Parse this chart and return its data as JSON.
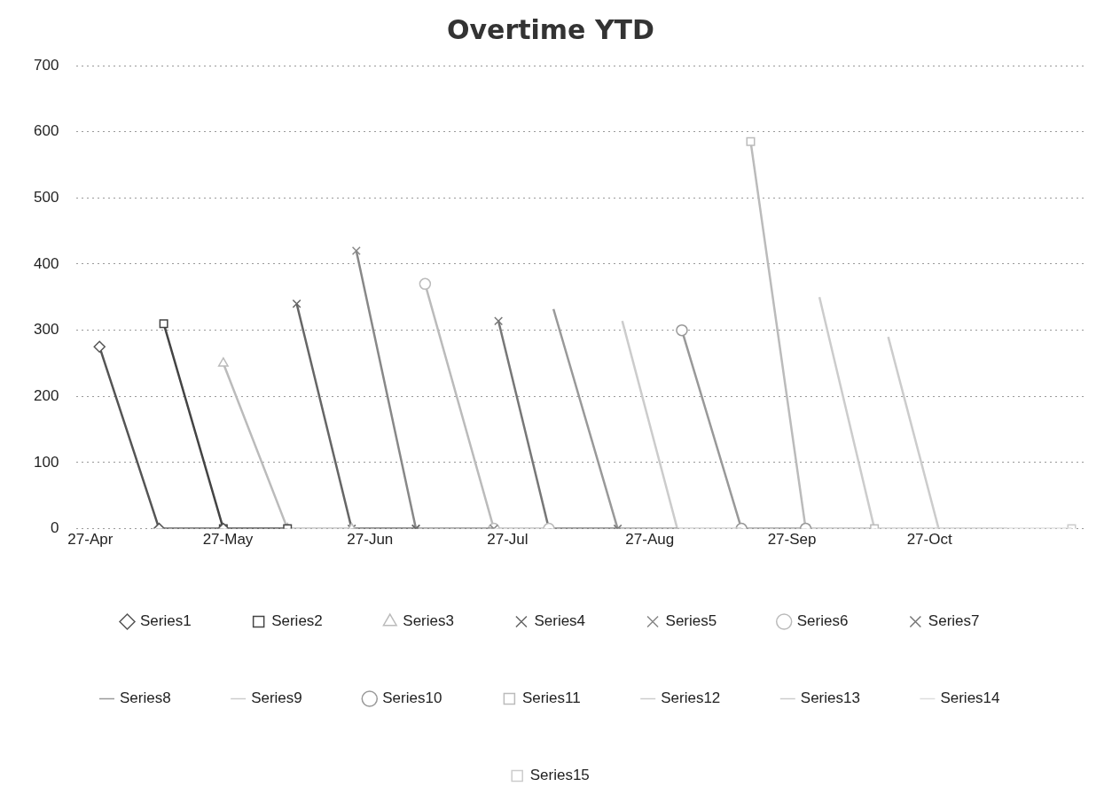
{
  "chart_data": {
    "type": "line",
    "title": "Overtime YTD",
    "xlim": [
      "--04-24",
      "--11-30"
    ],
    "xticks": [
      {
        "value": "--04-27",
        "label": "27-Apr"
      },
      {
        "value": "--05-27",
        "label": "27-May"
      },
      {
        "value": "--06-27",
        "label": "27-Jun"
      },
      {
        "value": "--07-27",
        "label": "27-Jul"
      },
      {
        "value": "--08-27",
        "label": "27-Aug"
      },
      {
        "value": "--09-27",
        "label": "27-Sep"
      },
      {
        "value": "--10-27",
        "label": "27-Oct"
      }
    ],
    "ylim": [
      0,
      700
    ],
    "yticks": [
      0,
      100,
      200,
      300,
      400,
      500,
      600,
      700
    ],
    "grid": "y",
    "legend": "bottom",
    "line_style": "solid",
    "series": [
      {
        "name": "Series1",
        "color": "#555555",
        "marker": "diamond",
        "x": [
          "--04-29",
          "--05-12",
          "--05-26"
        ],
        "values": [
          275,
          0,
          0
        ]
      },
      {
        "name": "Series2",
        "color": "#444444",
        "marker": "square",
        "x": [
          "--05-13",
          "--05-26",
          "--06-09"
        ],
        "values": [
          310,
          0,
          0
        ]
      },
      {
        "name": "Series3",
        "color": "#bbbbbb",
        "marker": "triangle",
        "x": [
          "--05-26",
          "--06-09",
          "--06-23"
        ],
        "values": [
          250,
          0,
          0
        ]
      },
      {
        "name": "Series4",
        "color": "#666666",
        "marker": "cross",
        "x": [
          "--06-11",
          "--06-23",
          "--07-07"
        ],
        "values": [
          340,
          0,
          0
        ]
      },
      {
        "name": "Series5",
        "color": "#888888",
        "marker": "cross",
        "x": [
          "--06-24",
          "--07-07",
          "--07-24"
        ],
        "values": [
          420,
          0,
          0
        ]
      },
      {
        "name": "Series6",
        "color": "#bbbbbb",
        "marker": "circle",
        "x": [
          "--07-09",
          "--07-24",
          "--08-05"
        ],
        "values": [
          370,
          0,
          0
        ]
      },
      {
        "name": "Series7",
        "color": "#777777",
        "marker": "cross",
        "x": [
          "--07-25",
          "--08-05",
          "--08-20"
        ],
        "values": [
          314,
          0,
          0
        ]
      },
      {
        "name": "Series8",
        "color": "#999999",
        "marker": "none",
        "x": [
          "--08-06",
          "--08-20",
          "--09-02"
        ],
        "values": [
          332,
          0,
          0
        ]
      },
      {
        "name": "Series9",
        "color": "#cccccc",
        "marker": "none",
        "x": [
          "--08-21",
          "--09-02",
          "--09-16"
        ],
        "values": [
          314,
          0,
          0
        ]
      },
      {
        "name": "Series10",
        "color": "#999999",
        "marker": "circle",
        "x": [
          "--09-03",
          "--09-16",
          "--09-30"
        ],
        "values": [
          300,
          0,
          0
        ]
      },
      {
        "name": "Series11",
        "color": "#bbbbbb",
        "marker": "square",
        "x": [
          "--09-18",
          "--09-30",
          "--10-15"
        ],
        "values": [
          585,
          0,
          0
        ]
      },
      {
        "name": "Series12",
        "color": "#cccccc",
        "marker": "none",
        "x": [
          "--10-03",
          "--10-15",
          "--10-29"
        ],
        "values": [
          350,
          0,
          0
        ]
      },
      {
        "name": "Series13",
        "color": "#cccccc",
        "marker": "none",
        "x": [
          "--10-18",
          "--10-29",
          "--11-13"
        ],
        "values": [
          290,
          0,
          0
        ]
      },
      {
        "name": "Series14",
        "color": "#dddddd",
        "marker": "none",
        "x": [
          "--11-13",
          "--11-27"
        ],
        "values": [
          0,
          0
        ]
      },
      {
        "name": "Series15",
        "color": "#cccccc",
        "marker": "square",
        "x": [
          "--11-27"
        ],
        "values": [
          0
        ]
      }
    ]
  }
}
